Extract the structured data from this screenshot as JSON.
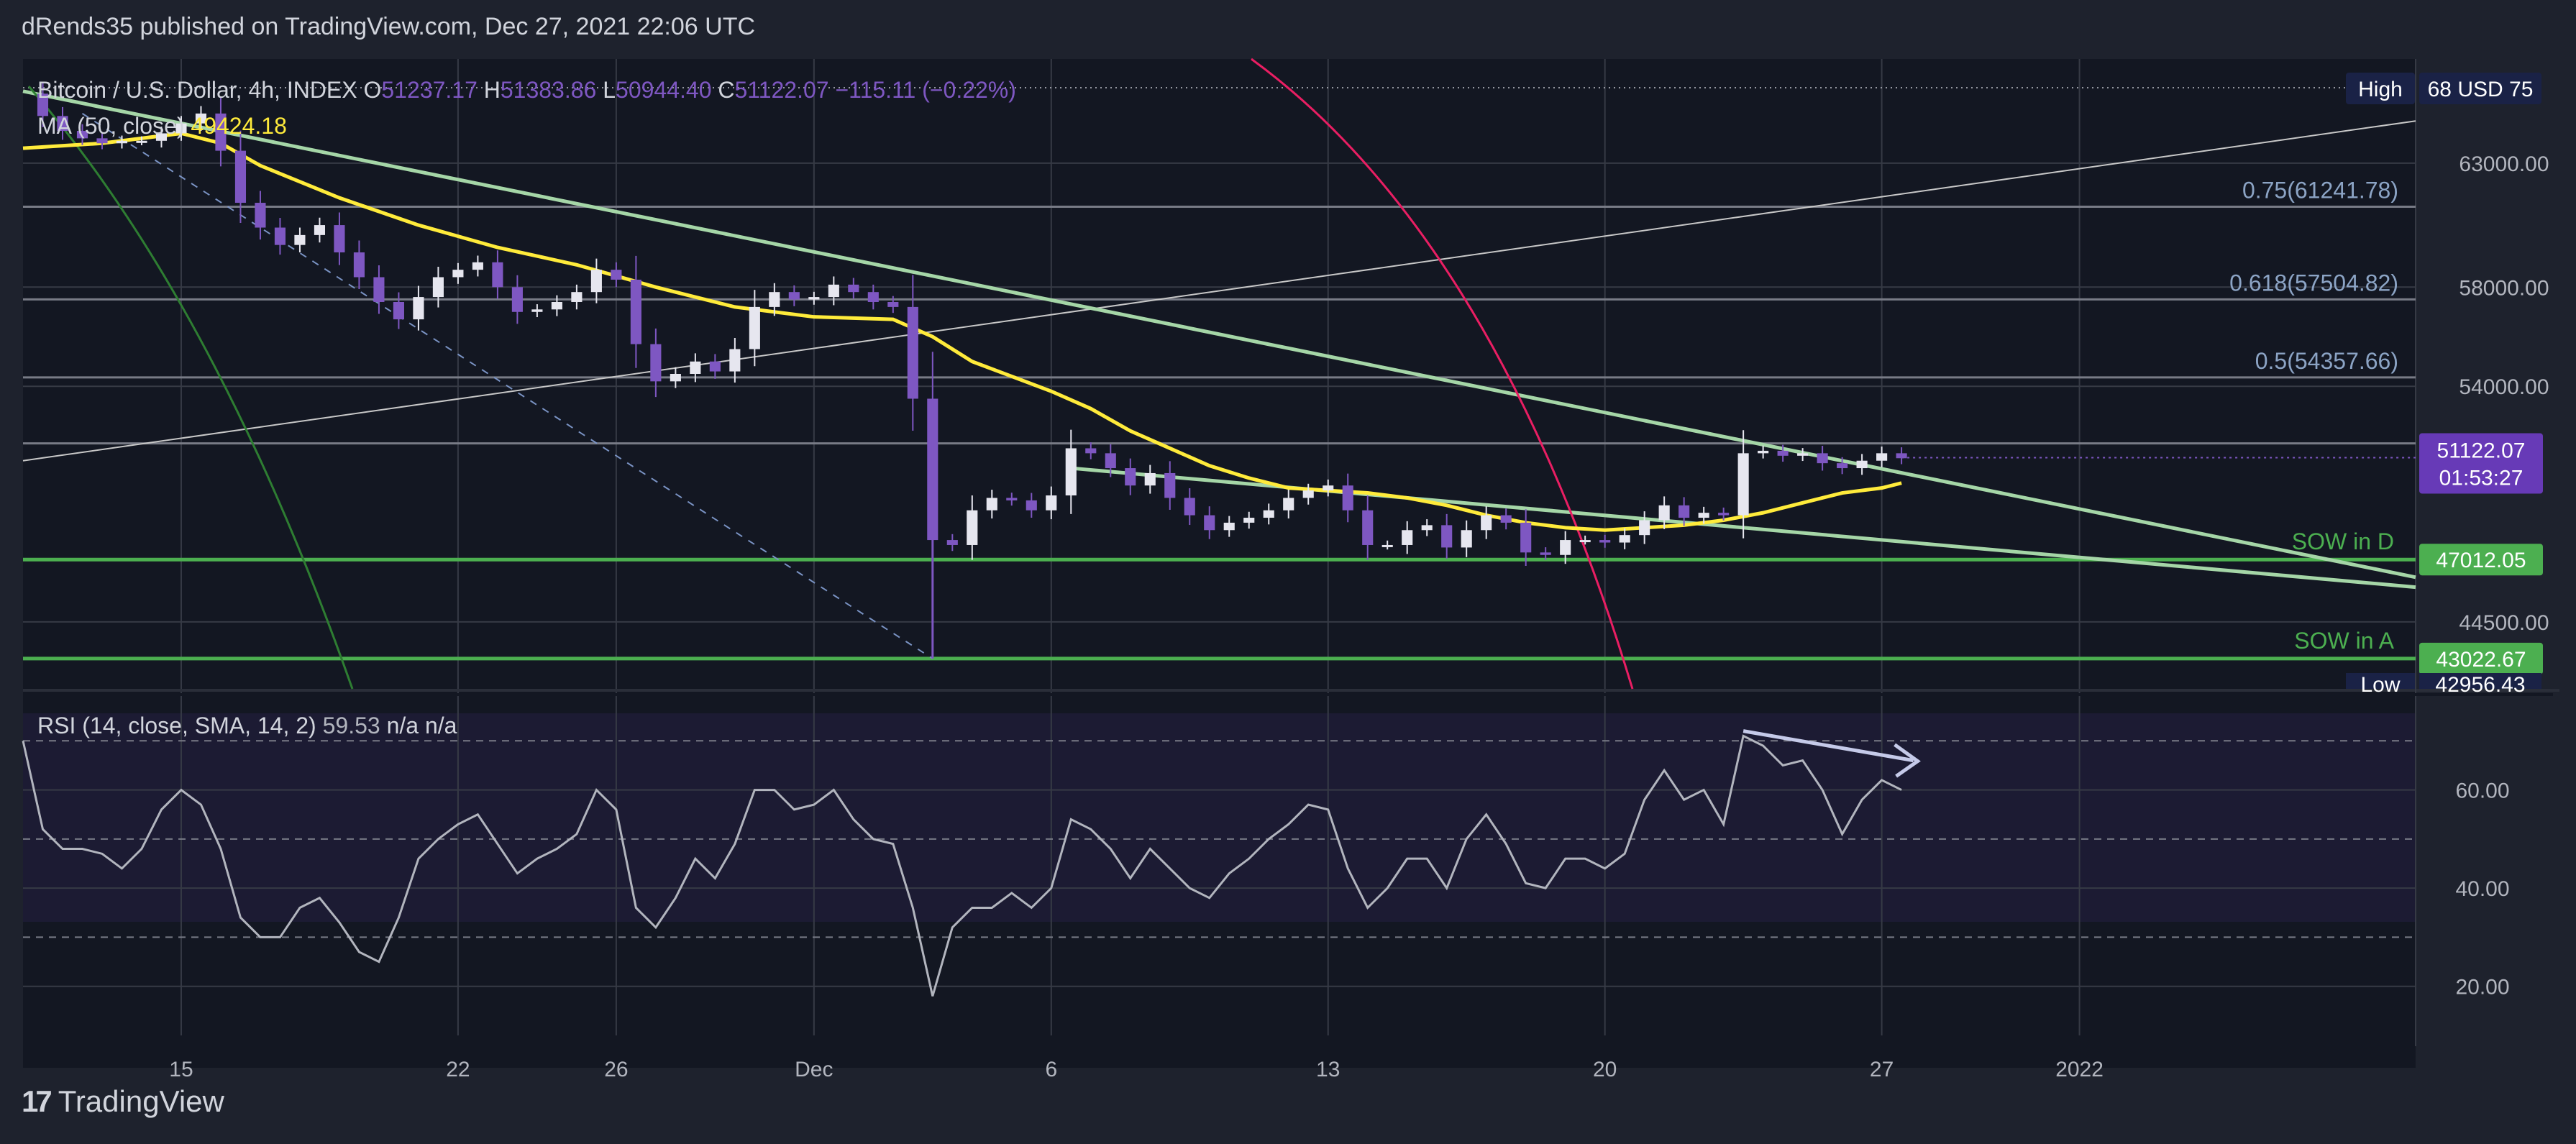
{
  "header": {
    "publisher": "dRends35 published on TradingView.com, Dec 27, 2021 22:06 UTC"
  },
  "footer": {
    "brand": "TradingView",
    "logo_glyph": "17"
  },
  "colors": {
    "background": "#131722",
    "frame": "#1e222d",
    "grid": "#363a45",
    "text": "#d1d4dc",
    "candle": "#7e57c2",
    "candle_up": "#e6e6ef",
    "ma": "#ffeb3b",
    "trend": "#a5d6a7",
    "sow": "#4caf50",
    "fib": "#787b86",
    "arc": "#e91e63",
    "rsi": "#b2b5be",
    "price_badge": "#673ab7",
    "sow_badge": "#4caf50",
    "axis_label": "#b2b5be"
  },
  "chart_data": [
    {
      "type": "candlestick",
      "title": "Bitcoin / U.S. Dollar, 4h, INDEX",
      "ohlc": {
        "o_label": "O",
        "o": "51237.17",
        "h_label": "H",
        "h": "51383.86",
        "l_label": "L",
        "l": "50944.40",
        "c_label": "C",
        "c": "51122.07",
        "change": "−115.11 (−0.22%)"
      },
      "ma_label": "MA (50, close)",
      "ma_value": "49424.18",
      "currency": "USD",
      "x_ticks": [
        "15",
        "22",
        "26",
        "Dec",
        "6",
        "13",
        "20",
        "27",
        "2022"
      ],
      "x_tick_days": [
        15,
        22,
        26,
        31,
        37,
        44,
        51,
        58,
        63
      ],
      "x_range_days": [
        11,
        71.5
      ],
      "y_range": [
        41800,
        67200
      ],
      "y_ticks": [
        {
          "value": 63000,
          "label": "63000.00"
        },
        {
          "value": 58000,
          "label": "58000.00"
        },
        {
          "value": 54000,
          "label": "54000.00"
        },
        {
          "value": 44500,
          "label": "44500.00"
        }
      ],
      "price_series": [
        [
          11.0,
          65800
        ],
        [
          11.5,
          64900
        ],
        [
          12.0,
          64300
        ],
        [
          12.5,
          64000
        ],
        [
          13.0,
          63800
        ],
        [
          13.5,
          63900
        ],
        [
          14.0,
          63900
        ],
        [
          14.5,
          64200
        ],
        [
          15.0,
          64600
        ],
        [
          15.5,
          65000
        ],
        [
          16.0,
          63500
        ],
        [
          16.5,
          61400
        ],
        [
          17.0,
          60400
        ],
        [
          17.5,
          59700
        ],
        [
          18.0,
          60100
        ],
        [
          18.5,
          60500
        ],
        [
          19.0,
          59400
        ],
        [
          19.5,
          58400
        ],
        [
          20.0,
          57400
        ],
        [
          20.5,
          56700
        ],
        [
          21.0,
          57600
        ],
        [
          21.5,
          58400
        ],
        [
          22.0,
          58700
        ],
        [
          22.5,
          59000
        ],
        [
          23.0,
          58000
        ],
        [
          23.5,
          57000
        ],
        [
          24.0,
          57100
        ],
        [
          24.5,
          57400
        ],
        [
          25.0,
          57800
        ],
        [
          25.5,
          58700
        ],
        [
          26.0,
          58300
        ],
        [
          26.5,
          55700
        ],
        [
          27.0,
          54200
        ],
        [
          27.5,
          54500
        ],
        [
          28.0,
          55000
        ],
        [
          28.5,
          54600
        ],
        [
          29.0,
          55500
        ],
        [
          29.5,
          57200
        ],
        [
          30.0,
          57800
        ],
        [
          30.5,
          57500
        ],
        [
          31.0,
          57600
        ],
        [
          31.5,
          58100
        ],
        [
          32.0,
          57800
        ],
        [
          32.5,
          57400
        ],
        [
          33.0,
          57200
        ],
        [
          33.5,
          53500
        ],
        [
          34.0,
          47800
        ],
        [
          34.5,
          47600
        ],
        [
          35.0,
          49000
        ],
        [
          35.5,
          49500
        ],
        [
          36.0,
          49400
        ],
        [
          36.5,
          49000
        ],
        [
          37.0,
          49600
        ],
        [
          37.5,
          51500
        ],
        [
          38.0,
          51300
        ],
        [
          38.5,
          50700
        ],
        [
          39.0,
          50000
        ],
        [
          39.5,
          50500
        ],
        [
          40.0,
          49500
        ],
        [
          40.5,
          48800
        ],
        [
          41.0,
          48200
        ],
        [
          41.5,
          48500
        ],
        [
          42.0,
          48700
        ],
        [
          42.5,
          49000
        ],
        [
          43.0,
          49500
        ],
        [
          43.5,
          49800
        ],
        [
          44.0,
          50000
        ],
        [
          44.5,
          49000
        ],
        [
          45.0,
          47600
        ],
        [
          45.5,
          47600
        ],
        [
          46.0,
          48200
        ],
        [
          46.5,
          48400
        ],
        [
          47.0,
          47500
        ],
        [
          47.5,
          48200
        ],
        [
          48.0,
          48800
        ],
        [
          48.5,
          48500
        ],
        [
          49.0,
          47300
        ],
        [
          49.5,
          47200
        ],
        [
          50.0,
          47800
        ],
        [
          50.5,
          47800
        ],
        [
          51.0,
          47700
        ],
        [
          51.5,
          48000
        ],
        [
          52.0,
          48600
        ],
        [
          52.5,
          49200
        ],
        [
          53.0,
          48700
        ],
        [
          53.5,
          48900
        ],
        [
          54.0,
          48800
        ],
        [
          54.5,
          51300
        ],
        [
          55.0,
          51400
        ],
        [
          55.5,
          51200
        ],
        [
          56.0,
          51300
        ],
        [
          56.5,
          50900
        ],
        [
          57.0,
          50700
        ],
        [
          57.5,
          51000
        ],
        [
          58.0,
          51300
        ],
        [
          58.5,
          51100
        ]
      ],
      "ma_series": [
        [
          11.0,
          63600
        ],
        [
          13.0,
          63800
        ],
        [
          15.0,
          64200
        ],
        [
          16.0,
          63800
        ],
        [
          17.0,
          62900
        ],
        [
          19.0,
          61600
        ],
        [
          21.0,
          60500
        ],
        [
          23.0,
          59600
        ],
        [
          25.0,
          58900
        ],
        [
          27.0,
          58000
        ],
        [
          29.0,
          57200
        ],
        [
          31.0,
          56800
        ],
        [
          33.0,
          56700
        ],
        [
          34.0,
          56000
        ],
        [
          35.0,
          55000
        ],
        [
          36.0,
          54400
        ],
        [
          37.0,
          53800
        ],
        [
          38.0,
          53100
        ],
        [
          39.0,
          52200
        ],
        [
          40.0,
          51500
        ],
        [
          41.0,
          50800
        ],
        [
          42.0,
          50300
        ],
        [
          43.0,
          49900
        ],
        [
          44.0,
          49800
        ],
        [
          45.0,
          49700
        ],
        [
          46.0,
          49500
        ],
        [
          47.0,
          49200
        ],
        [
          48.0,
          48800
        ],
        [
          49.0,
          48500
        ],
        [
          50.0,
          48300
        ],
        [
          51.0,
          48200
        ],
        [
          52.0,
          48300
        ],
        [
          53.0,
          48400
        ],
        [
          54.0,
          48600
        ],
        [
          55.0,
          48900
        ],
        [
          56.0,
          49300
        ],
        [
          57.0,
          49700
        ],
        [
          58.0,
          49900
        ],
        [
          58.5,
          50100
        ]
      ],
      "horizontal_levels": [
        {
          "label": "0.75(61241.78)",
          "value": 61241.78
        },
        {
          "label": "0.618(57504.82)",
          "value": 57504.82
        },
        {
          "label": "0.5(54357.66)",
          "value": 54357.66
        },
        {
          "label": "",
          "value": 51700
        }
      ],
      "sow_levels": [
        {
          "label": "SOW in D",
          "value": 47012.05,
          "badge": "47012.05"
        },
        {
          "label": "SOW in A",
          "value": 43022.67,
          "badge": "43022.67"
        }
      ],
      "trendlines": [
        {
          "from": [
            11.0,
            65900
          ],
          "to": [
            71.5,
            46300
          ]
        },
        {
          "from": [
            37.5,
            50700
          ],
          "to": [
            71.5,
            45900
          ]
        }
      ],
      "channel_line": {
        "from": [
          11.0,
          51000
        ],
        "to": [
          71.5,
          64700
        ]
      },
      "dashed_line": {
        "from": [
          12.5,
          65000
        ],
        "to": [
          34.0,
          43022
        ]
      },
      "high_label": "High",
      "high_value": "68 USD 75",
      "low_label": "Low",
      "low_value": "42956.43",
      "last_price": "51122.07",
      "countdown": "01:53:27"
    },
    {
      "type": "line",
      "title": "RSI (14, close, SMA, 14, 2)",
      "value": "59.53",
      "na1": "n/a",
      "na2": "n/a",
      "y_range": [
        10,
        80
      ],
      "bands": [
        30,
        50,
        70
      ],
      "y_ticks": [
        {
          "value": 60,
          "label": "60.00"
        },
        {
          "value": 40,
          "label": "40.00"
        },
        {
          "value": 20,
          "label": "20.00"
        }
      ],
      "series": [
        [
          11.0,
          70
        ],
        [
          11.5,
          52
        ],
        [
          12.0,
          48
        ],
        [
          12.5,
          48
        ],
        [
          13.0,
          47
        ],
        [
          13.5,
          44
        ],
        [
          14.0,
          48
        ],
        [
          14.5,
          56
        ],
        [
          15.0,
          60
        ],
        [
          15.5,
          57
        ],
        [
          16.0,
          48
        ],
        [
          16.5,
          34
        ],
        [
          17.0,
          30
        ],
        [
          17.5,
          30
        ],
        [
          18.0,
          36
        ],
        [
          18.5,
          38
        ],
        [
          19.0,
          33
        ],
        [
          19.5,
          27
        ],
        [
          20.0,
          25
        ],
        [
          20.5,
          34
        ],
        [
          21.0,
          46
        ],
        [
          21.5,
          50
        ],
        [
          22.0,
          53
        ],
        [
          22.5,
          55
        ],
        [
          23.0,
          49
        ],
        [
          23.5,
          43
        ],
        [
          24.0,
          46
        ],
        [
          24.5,
          48
        ],
        [
          25.0,
          51
        ],
        [
          25.5,
          60
        ],
        [
          26.0,
          56
        ],
        [
          26.5,
          36
        ],
        [
          27.0,
          32
        ],
        [
          27.5,
          38
        ],
        [
          28.0,
          46
        ],
        [
          28.5,
          42
        ],
        [
          29.0,
          49
        ],
        [
          29.5,
          60
        ],
        [
          30.0,
          60
        ],
        [
          30.5,
          56
        ],
        [
          31.0,
          57
        ],
        [
          31.5,
          60
        ],
        [
          32.0,
          54
        ],
        [
          32.5,
          50
        ],
        [
          33.0,
          49
        ],
        [
          33.5,
          36
        ],
        [
          34.0,
          18
        ],
        [
          34.5,
          32
        ],
        [
          35.0,
          36
        ],
        [
          35.5,
          36
        ],
        [
          36.0,
          39
        ],
        [
          36.5,
          36
        ],
        [
          37.0,
          40
        ],
        [
          37.5,
          54
        ],
        [
          38.0,
          52
        ],
        [
          38.5,
          48
        ],
        [
          39.0,
          42
        ],
        [
          39.5,
          48
        ],
        [
          40.0,
          44
        ],
        [
          40.5,
          40
        ],
        [
          41.0,
          38
        ],
        [
          41.5,
          43
        ],
        [
          42.0,
          46
        ],
        [
          42.5,
          50
        ],
        [
          43.0,
          53
        ],
        [
          43.5,
          57
        ],
        [
          44.0,
          56
        ],
        [
          44.5,
          44
        ],
        [
          45.0,
          36
        ],
        [
          45.5,
          40
        ],
        [
          46.0,
          46
        ],
        [
          46.5,
          46
        ],
        [
          47.0,
          40
        ],
        [
          47.5,
          50
        ],
        [
          48.0,
          55
        ],
        [
          48.5,
          49
        ],
        [
          49.0,
          41
        ],
        [
          49.5,
          40
        ],
        [
          50.0,
          46
        ],
        [
          50.5,
          46
        ],
        [
          51.0,
          44
        ],
        [
          51.5,
          47
        ],
        [
          52.0,
          58
        ],
        [
          52.5,
          64
        ],
        [
          53.0,
          58
        ],
        [
          53.5,
          60
        ],
        [
          54.0,
          53
        ],
        [
          54.5,
          71
        ],
        [
          55.0,
          69
        ],
        [
          55.5,
          65
        ],
        [
          56.0,
          66
        ],
        [
          56.5,
          60
        ],
        [
          57.0,
          51
        ],
        [
          57.5,
          58
        ],
        [
          58.0,
          62
        ],
        [
          58.5,
          60
        ]
      ],
      "divergence_arrow": {
        "from": [
          54.5,
          72
        ],
        "to": [
          58.8,
          66
        ]
      }
    }
  ]
}
